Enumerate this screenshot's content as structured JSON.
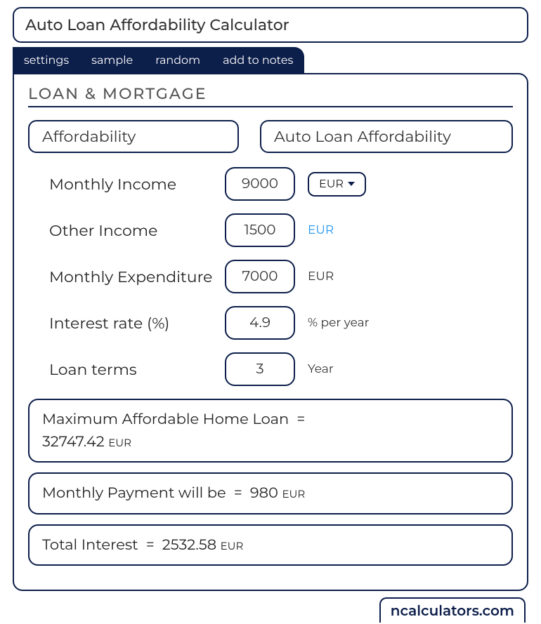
{
  "title": "Auto Loan Affordability Calculator",
  "tabs": [
    "settings",
    "sample",
    "random",
    "add to notes"
  ],
  "section": "LOAN & MORTGAGE",
  "categories": {
    "left": "Affordability",
    "right": "Auto Loan Affordability"
  },
  "currency": "EUR",
  "fields": {
    "monthly_income": {
      "label": "Monthly Income",
      "value": "9000"
    },
    "other_income": {
      "label": "Other Income",
      "value": "1500",
      "unit": "EUR",
      "unit_link": true
    },
    "monthly_expenditure": {
      "label": "Monthly Expenditure",
      "value": "7000",
      "unit": "EUR"
    },
    "interest_rate": {
      "label": "Interest rate (%)",
      "value": "4.9",
      "unit": "% per year"
    },
    "loan_terms": {
      "label": "Loan terms",
      "value": "3",
      "unit": "Year"
    }
  },
  "results": {
    "max_loan": {
      "label": "Maximum Affordable Home Loan",
      "value": "32747.42",
      "unit": "EUR"
    },
    "monthly_payment": {
      "label": "Monthly Payment will be",
      "value": "980",
      "unit": "EUR"
    },
    "total_interest": {
      "label": "Total Interest",
      "value": "2532.58",
      "unit": "EUR"
    }
  },
  "watermark": "ncalculators.com"
}
